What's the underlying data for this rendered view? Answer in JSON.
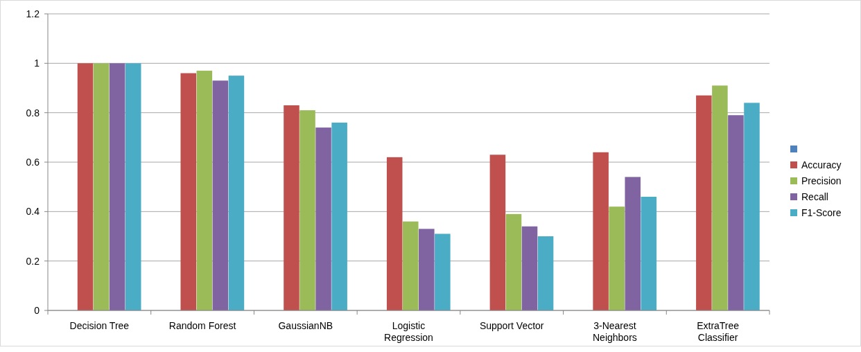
{
  "chart_data": {
    "type": "bar",
    "categories": [
      "Decision Tree",
      "Random Forest",
      "GaussianNB",
      "Logistic Regression",
      "Support Vector",
      "3-Nearest Neighbors",
      "ExtraTree Classifier"
    ],
    "series": [
      {
        "color": "#4f81bd",
        "values": [
          null,
          null,
          null,
          null,
          null,
          null,
          null
        ]
      },
      {
        "name": "Accuracy",
        "color": "#c0504d",
        "values": [
          1,
          0.96,
          0.83,
          0.62,
          0.63,
          0.64,
          0.87
        ]
      },
      {
        "name": "Precision",
        "color": "#9bbb59",
        "values": [
          1,
          0.97,
          0.81,
          0.36,
          0.39,
          0.42,
          0.91
        ]
      },
      {
        "name": "Recall",
        "color": "#8064a2",
        "values": [
          1,
          0.93,
          0.74,
          0.33,
          0.34,
          0.54,
          0.79
        ]
      },
      {
        "name": "F1-Score",
        "color": "#4bacc6",
        "values": [
          1,
          0.95,
          0.76,
          0.31,
          0.3,
          0.46,
          0.84
        ]
      }
    ],
    "ylim": [
      0,
      1.2
    ],
    "yticks": [
      0,
      0.2,
      0.4,
      0.6,
      0.8,
      1,
      1.2
    ],
    "grid": "y",
    "legend": "right"
  }
}
